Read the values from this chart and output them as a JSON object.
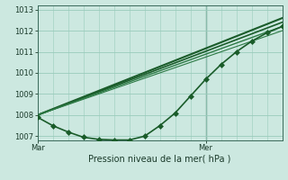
{
  "xlabel": "Pression niveau de la mer( hPa )",
  "ylim": [
    1006.8,
    1013.2
  ],
  "xlim": [
    0,
    48
  ],
  "yticks": [
    1007,
    1008,
    1009,
    1010,
    1011,
    1012,
    1013
  ],
  "xtick_positions": [
    0,
    33
  ],
  "xtick_labels": [
    "Mar",
    "Mer"
  ],
  "bg_color": "#cce8e0",
  "plot_bg_color": "#cce8e0",
  "grid_color": "#99ccbb",
  "line_color_dark": "#1a5c2a",
  "line_color_mid": "#2d7a45",
  "marker_color": "#1a5c2a",
  "ver_line_x": 33,
  "lines": [
    {
      "x": [
        0,
        48
      ],
      "y": [
        1008.0,
        1012.6
      ],
      "marker": null,
      "lw": 1.5,
      "color": "#1a5c2a"
    },
    {
      "x": [
        0,
        48
      ],
      "y": [
        1008.0,
        1012.4
      ],
      "marker": null,
      "lw": 1.2,
      "color": "#1a5c2a"
    },
    {
      "x": [
        0,
        48
      ],
      "y": [
        1008.0,
        1012.2
      ],
      "marker": null,
      "lw": 1.0,
      "color": "#2d7a45"
    },
    {
      "x": [
        0,
        48
      ],
      "y": [
        1008.0,
        1012.0
      ],
      "marker": null,
      "lw": 0.8,
      "color": "#2d7a45"
    },
    {
      "x": [
        0,
        3,
        6,
        9,
        12,
        15,
        18,
        21,
        24,
        27,
        30,
        33,
        36,
        39,
        42,
        45,
        48
      ],
      "y": [
        1007.9,
        1007.5,
        1007.2,
        1006.95,
        1006.85,
        1006.82,
        1006.82,
        1007.0,
        1007.5,
        1008.1,
        1008.9,
        1009.7,
        1010.4,
        1011.0,
        1011.5,
        1011.9,
        1012.2
      ],
      "marker": "D",
      "lw": 1.2,
      "color": "#1a5c2a"
    }
  ]
}
